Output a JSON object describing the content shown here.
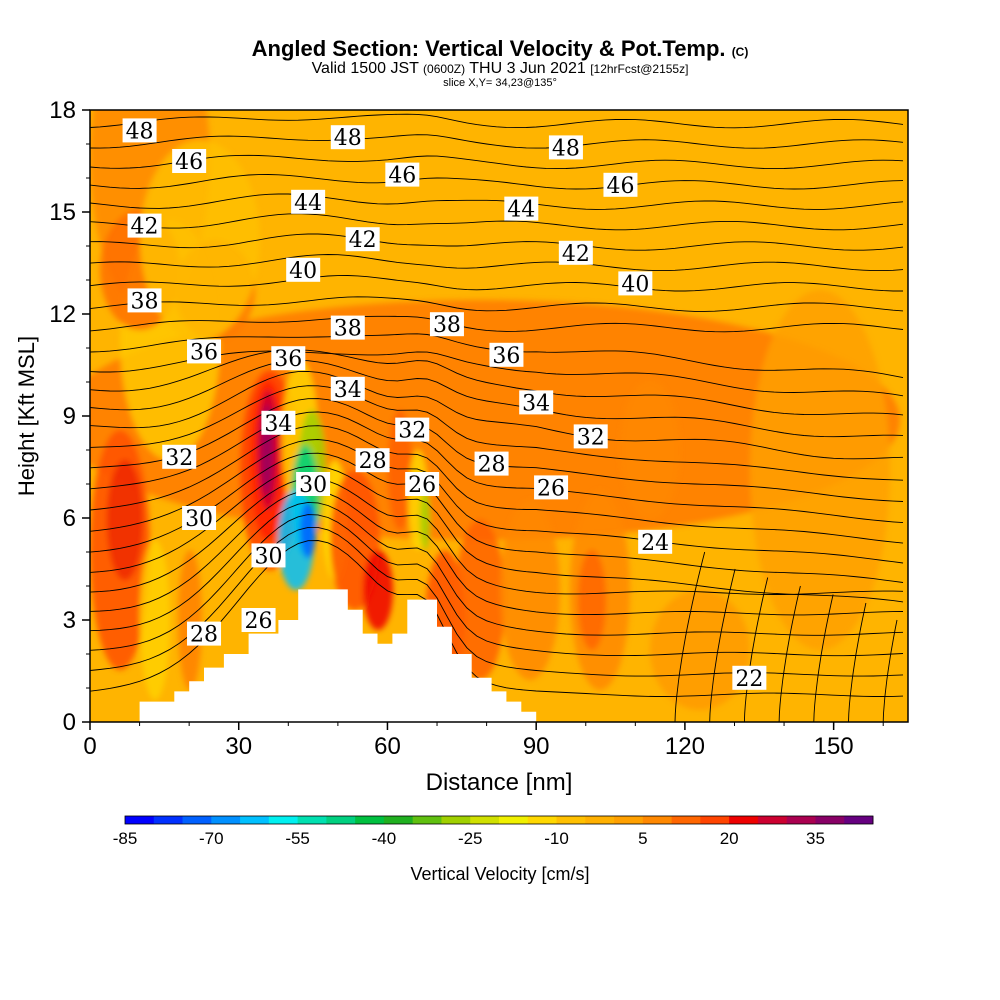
{
  "header": {
    "title_main": "Angled Section: Vertical Velocity & Pot.Temp.",
    "title_unit": "(C)",
    "valid_prefix": "Valid 1500 JST",
    "valid_utc": "(0600Z)",
    "valid_date": "THU 3 Jun 2021",
    "forecast": "[12hrFcst@2155z]",
    "slice": "slice X,Y= 34,23@135°"
  },
  "chart_data": {
    "type": "contour",
    "xlabel": "Distance [nm]",
    "ylabel": "Height [Kft MSL]",
    "xlim": [
      0,
      165
    ],
    "ylim": [
      0,
      18
    ],
    "xticks": [
      0,
      30,
      60,
      90,
      120,
      150
    ],
    "yticks": [
      0,
      3,
      6,
      9,
      12,
      15,
      18
    ],
    "colorbar": {
      "label": "Vertical Velocity [cm/s]",
      "ticks": [
        -85,
        -70,
        -55,
        -40,
        -25,
        -10,
        5,
        20,
        35
      ],
      "range": [
        -85,
        45
      ],
      "step": 5,
      "colors": [
        "#0000ff",
        "#0030ff",
        "#0060ff",
        "#0090ff",
        "#00c0ff",
        "#00f0f0",
        "#00e0b0",
        "#00d080",
        "#00c040",
        "#20b020",
        "#60c010",
        "#a0d000",
        "#d0e000",
        "#f0f000",
        "#ffd800",
        "#ffc000",
        "#ffb000",
        "#ffa000",
        "#ff8800",
        "#ff6600",
        "#ff4400",
        "#ee0000",
        "#cc0030",
        "#aa0050",
        "#880066",
        "#660080"
      ]
    },
    "isentrope_labels": [
      {
        "v": "48",
        "x": 10,
        "y": 17.4
      },
      {
        "v": "48",
        "x": 52,
        "y": 17.2
      },
      {
        "v": "48",
        "x": 96,
        "y": 16.9
      },
      {
        "v": "46",
        "x": 20,
        "y": 16.5
      },
      {
        "v": "46",
        "x": 63,
        "y": 16.1
      },
      {
        "v": "46",
        "x": 107,
        "y": 15.8
      },
      {
        "v": "44",
        "x": 44,
        "y": 15.3
      },
      {
        "v": "44",
        "x": 87,
        "y": 15.1
      },
      {
        "v": "42",
        "x": 11,
        "y": 14.6
      },
      {
        "v": "42",
        "x": 55,
        "y": 14.2
      },
      {
        "v": "42",
        "x": 98,
        "y": 13.8
      },
      {
        "v": "40",
        "x": 43,
        "y": 13.3
      },
      {
        "v": "40",
        "x": 110,
        "y": 12.9
      },
      {
        "v": "38",
        "x": 11,
        "y": 12.4
      },
      {
        "v": "38",
        "x": 52,
        "y": 11.6
      },
      {
        "v": "38",
        "x": 72,
        "y": 11.7
      },
      {
        "v": "36",
        "x": 23,
        "y": 10.9
      },
      {
        "v": "36",
        "x": 40,
        "y": 10.7
      },
      {
        "v": "36",
        "x": 84,
        "y": 10.8
      },
      {
        "v": "34",
        "x": 38,
        "y": 8.8
      },
      {
        "v": "34",
        "x": 52,
        "y": 9.8
      },
      {
        "v": "34",
        "x": 90,
        "y": 9.4
      },
      {
        "v": "32",
        "x": 18,
        "y": 7.8
      },
      {
        "v": "32",
        "x": 65,
        "y": 8.6
      },
      {
        "v": "32",
        "x": 101,
        "y": 8.4
      },
      {
        "v": "30",
        "x": 22,
        "y": 6.0
      },
      {
        "v": "30",
        "x": 45,
        "y": 7.0
      },
      {
        "v": "30",
        "x": 36,
        "y": 4.9
      },
      {
        "v": "28",
        "x": 57,
        "y": 7.7
      },
      {
        "v": "28",
        "x": 81,
        "y": 7.6
      },
      {
        "v": "28",
        "x": 23,
        "y": 2.6
      },
      {
        "v": "26",
        "x": 67,
        "y": 7.0
      },
      {
        "v": "26",
        "x": 93,
        "y": 6.9
      },
      {
        "v": "26",
        "x": 34,
        "y": 3.0
      },
      {
        "v": "24",
        "x": 114,
        "y": 5.3
      },
      {
        "v": "22",
        "x": 133,
        "y": 1.3
      }
    ],
    "terrain": [
      [
        0,
        0
      ],
      [
        10,
        0
      ],
      [
        10,
        0.6
      ],
      [
        17,
        0.6
      ],
      [
        17,
        0.9
      ],
      [
        20,
        0.9
      ],
      [
        20,
        1.2
      ],
      [
        23,
        1.2
      ],
      [
        23,
        1.6
      ],
      [
        27,
        1.6
      ],
      [
        27,
        2.0
      ],
      [
        32,
        2.0
      ],
      [
        32,
        2.6
      ],
      [
        38,
        2.6
      ],
      [
        38,
        3.0
      ],
      [
        42,
        3.0
      ],
      [
        42,
        3.9
      ],
      [
        52,
        3.9
      ],
      [
        52,
        3.3
      ],
      [
        55,
        3.3
      ],
      [
        55,
        2.6
      ],
      [
        58,
        2.6
      ],
      [
        58,
        2.3
      ],
      [
        61,
        2.3
      ],
      [
        61,
        2.6
      ],
      [
        64,
        2.6
      ],
      [
        64,
        3.6
      ],
      [
        70,
        3.6
      ],
      [
        70,
        2.8
      ],
      [
        73,
        2.8
      ],
      [
        73,
        2.0
      ],
      [
        77,
        2.0
      ],
      [
        77,
        1.3
      ],
      [
        81,
        1.3
      ],
      [
        81,
        0.9
      ],
      [
        84,
        0.9
      ],
      [
        84,
        0.6
      ],
      [
        87,
        0.6
      ],
      [
        87,
        0.3
      ],
      [
        90,
        0.3
      ],
      [
        90,
        0
      ],
      [
        165,
        0
      ]
    ]
  }
}
